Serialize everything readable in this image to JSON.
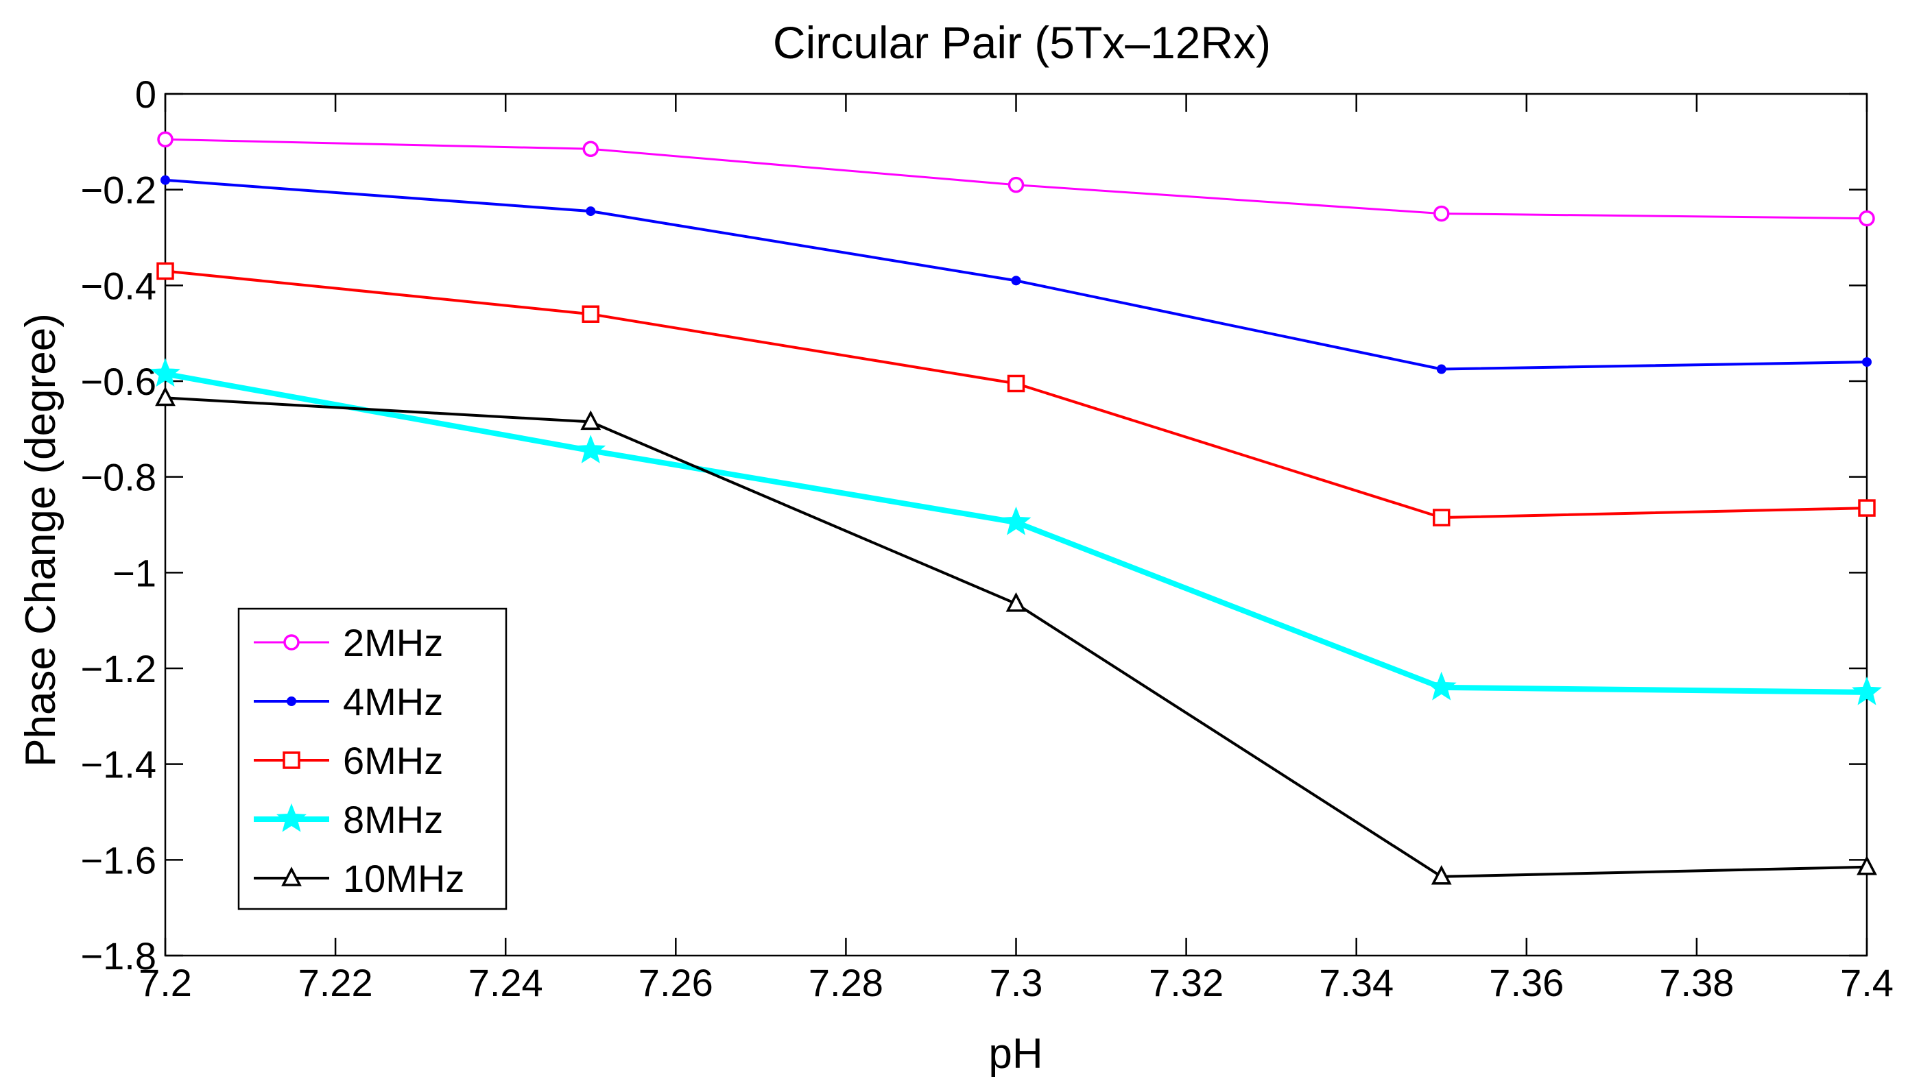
{
  "chart_data": {
    "type": "line",
    "title": "Circular Pair (5Tx–12Rx)",
    "xlabel": "pH",
    "ylabel": "Phase Change (degree)",
    "xlim": [
      7.2,
      7.4
    ],
    "ylim": [
      -1.8,
      0
    ],
    "xticks": [
      7.2,
      7.22,
      7.24,
      7.26,
      7.28,
      7.3,
      7.32,
      7.34,
      7.36,
      7.38,
      7.4
    ],
    "xtick_labels": [
      "7.2",
      "7.22",
      "7.24",
      "7.26",
      "7.28",
      "7.3",
      "7.32",
      "7.34",
      "7.36",
      "7.38",
      "7.4"
    ],
    "yticks": [
      0,
      -0.2,
      -0.4,
      -0.6,
      -0.8,
      -1,
      -1.2,
      -1.4,
      -1.6,
      -1.8
    ],
    "ytick_labels": [
      "0",
      "−0.2",
      "−0.4",
      "−0.6",
      "−0.8",
      "−1",
      "−1.2",
      "−1.4",
      "−1.6",
      "−1.8"
    ],
    "grid": false,
    "legend_position": "bottom-left",
    "x": [
      7.2,
      7.25,
      7.3,
      7.35,
      7.4
    ],
    "series": [
      {
        "name": "2MHz",
        "color": "#ff00ff",
        "marker": "circle",
        "values": [
          -0.095,
          -0.115,
          -0.19,
          -0.25,
          -0.26
        ]
      },
      {
        "name": "4MHz",
        "color": "#0000ff",
        "marker": "dot",
        "values": [
          -0.18,
          -0.245,
          -0.39,
          -0.575,
          -0.56
        ]
      },
      {
        "name": "6MHz",
        "color": "#ff0000",
        "marker": "square",
        "values": [
          -0.37,
          -0.46,
          -0.605,
          -0.885,
          -0.865
        ]
      },
      {
        "name": "8MHz",
        "color": "#00ffff",
        "marker": "star",
        "values": [
          -0.585,
          -0.745,
          -0.895,
          -1.24,
          -1.25
        ]
      },
      {
        "name": "10MHz",
        "color": "#000000",
        "marker": "triangle",
        "values": [
          -0.635,
          -0.685,
          -1.065,
          -1.635,
          -1.615
        ]
      }
    ]
  }
}
